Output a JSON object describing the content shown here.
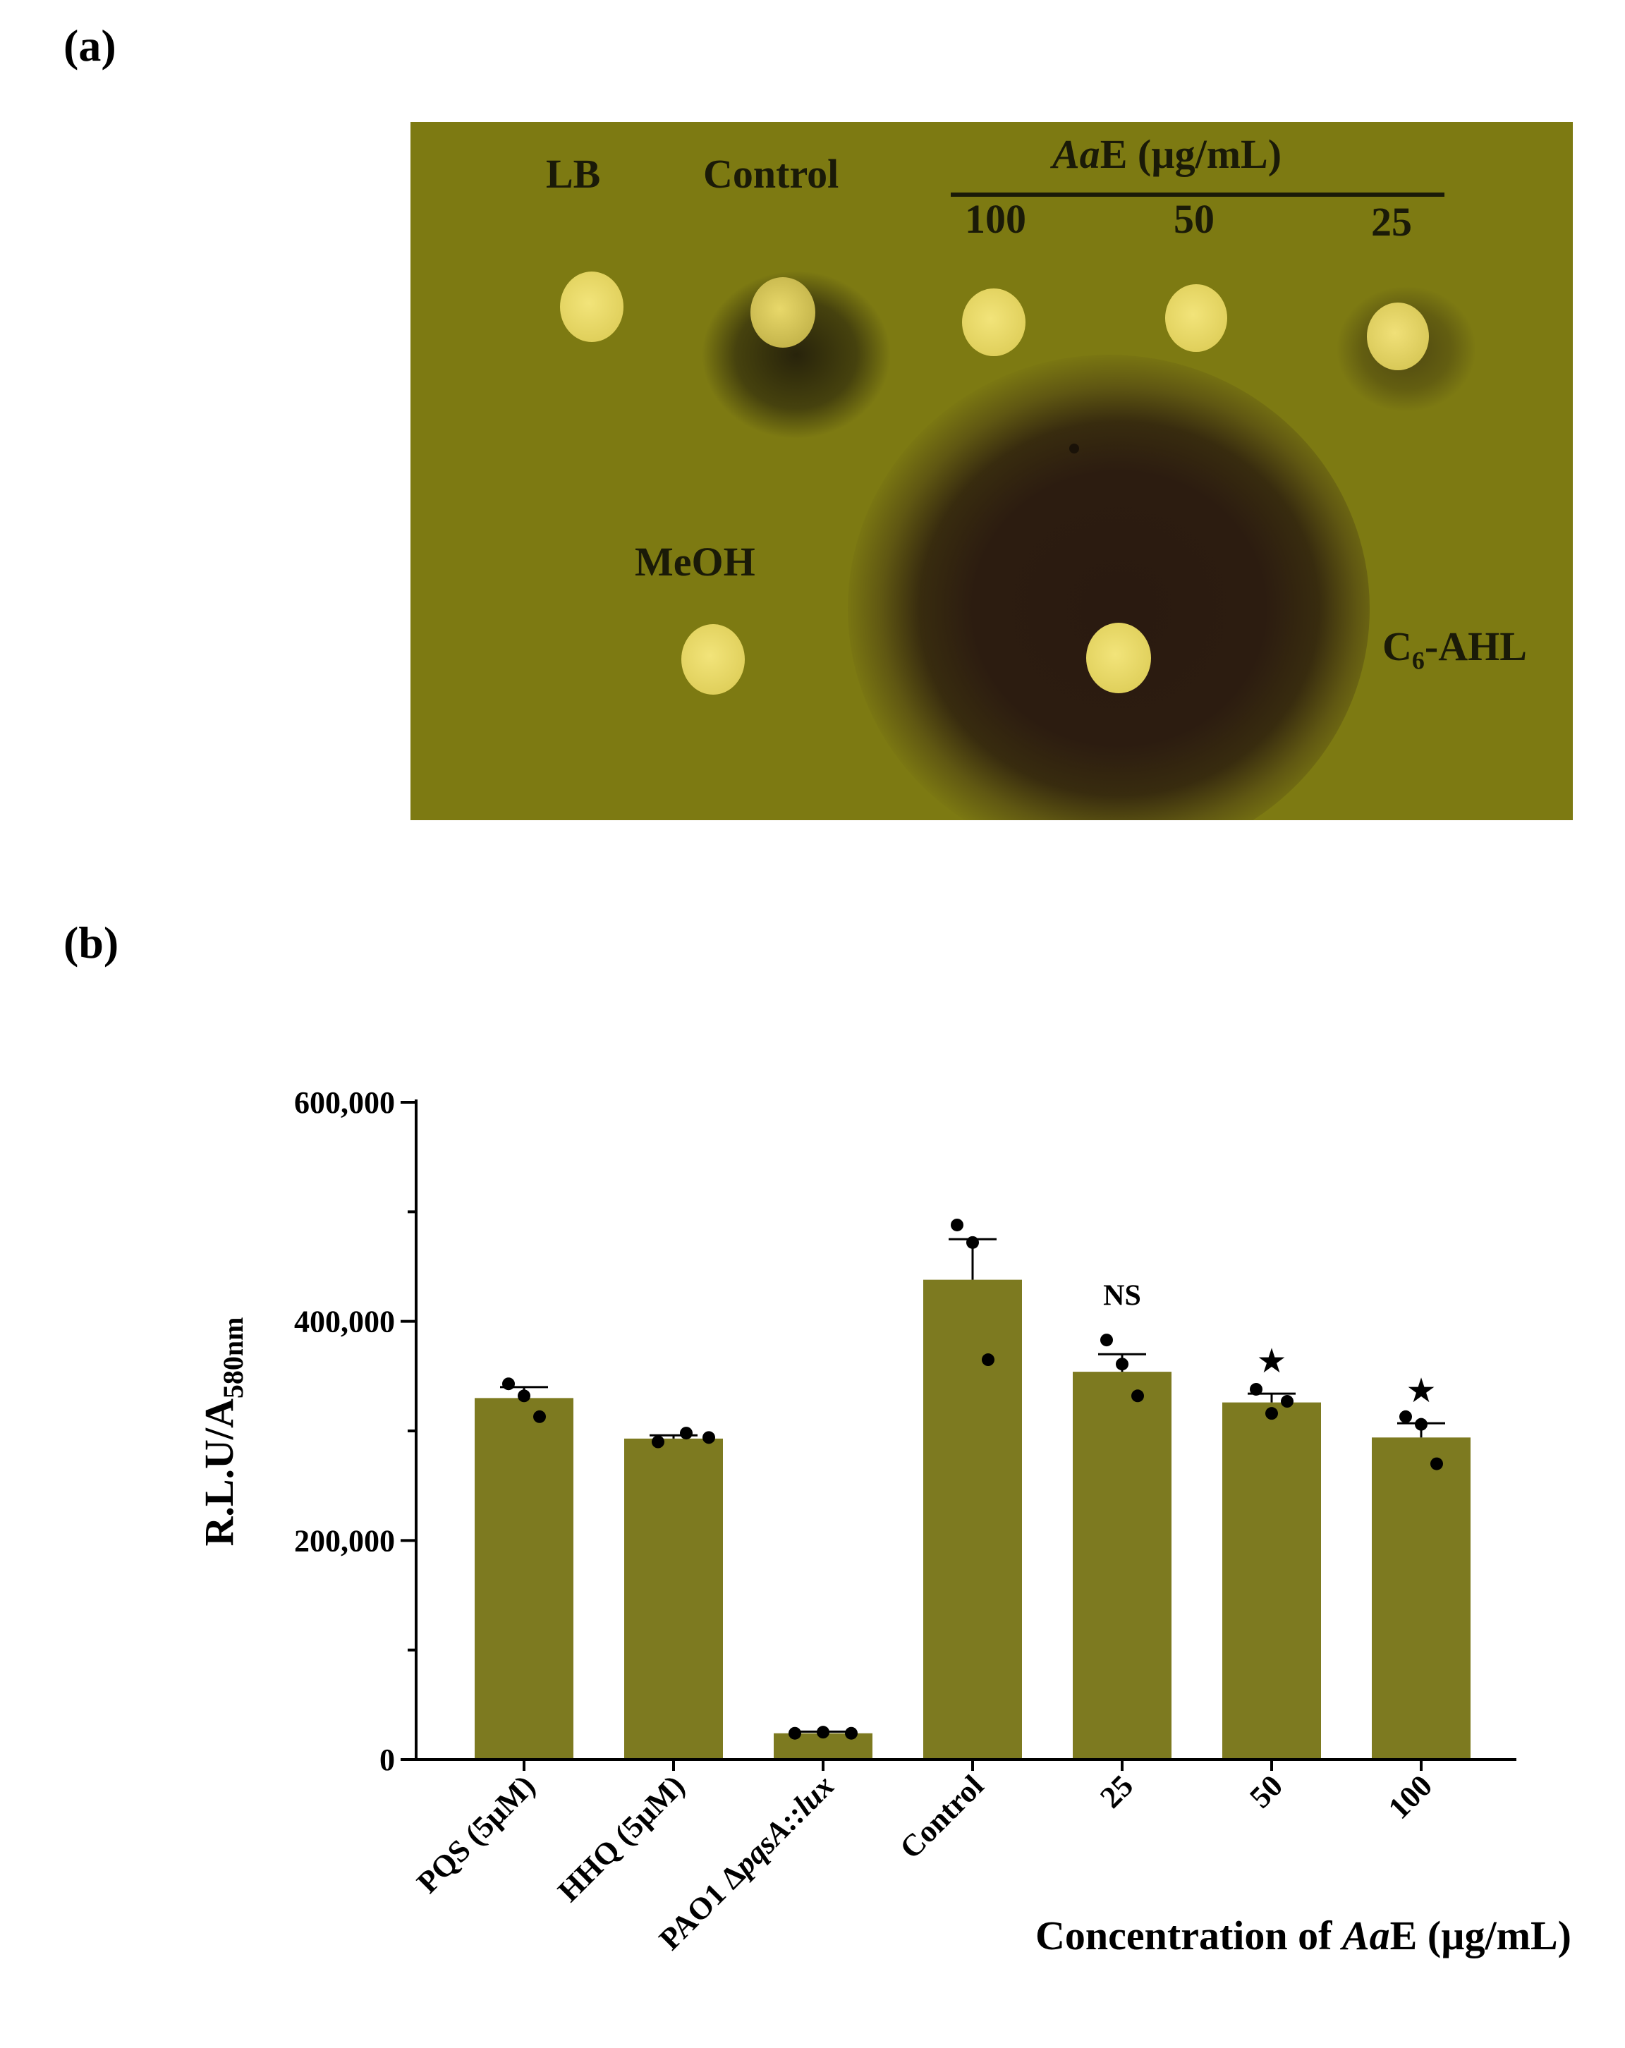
{
  "panel_a": {
    "label": "(a)",
    "lb": "LB",
    "control": "Control",
    "aae_prefix": "Aa",
    "aae_rest": "E (µg/mL)",
    "conc_100": "100",
    "conc_50": "50",
    "conc_25": "25",
    "meoh": "MeOH",
    "c6_main": "C",
    "c6_sub": "6",
    "c6_rest": "-AHL",
    "colors": {
      "plate": "#7d7a12",
      "spot": "#e6d964",
      "halo": "#2a1c10"
    }
  },
  "panel_b": {
    "label": "(b)"
  },
  "chart_data": {
    "type": "bar",
    "categories": [
      "PQS (5µM)",
      "HHQ (5µM)",
      "PAO1 ΔpqsA::lux",
      "Control",
      "25",
      "50",
      "100"
    ],
    "category_parts": [
      [
        "PQS (5µM)"
      ],
      [
        "HHQ (5µM)"
      ],
      [
        "PAO1 Δ",
        "pqsA::lux"
      ],
      [
        "Control"
      ],
      [
        "25"
      ],
      [
        "50"
      ],
      [
        "100"
      ]
    ],
    "values": [
      330000,
      293000,
      24000,
      438000,
      354000,
      326000,
      294000
    ],
    "errors": [
      10000,
      3000,
      1500,
      37000,
      16000,
      8000,
      13000
    ],
    "points": [
      [
        343000,
        332000,
        313000
      ],
      [
        290000,
        298000,
        294000
      ],
      [
        24000,
        25000,
        24000
      ],
      [
        488000,
        472000,
        365000
      ],
      [
        383000,
        361000,
        332000
      ],
      [
        338000,
        316000,
        327000
      ],
      [
        313000,
        306000,
        270000
      ]
    ],
    "annotations": [
      "",
      "",
      "",
      "",
      "NS",
      "★",
      "★"
    ],
    "yticks": [
      0,
      200000,
      400000,
      600000
    ],
    "ytick_labels": [
      "0",
      "200,000",
      "400,000",
      "600,000"
    ],
    "ylim": [
      0,
      600000
    ],
    "ylabel_main": "R.L.U/A",
    "ylabel_sub": "580nm",
    "xlabel_prefix": "Concentration of ",
    "xlabel_italic": "Aa",
    "xlabel_rest": "E (µg/mL)",
    "bar_color": "#7d7a20",
    "grid": false
  }
}
